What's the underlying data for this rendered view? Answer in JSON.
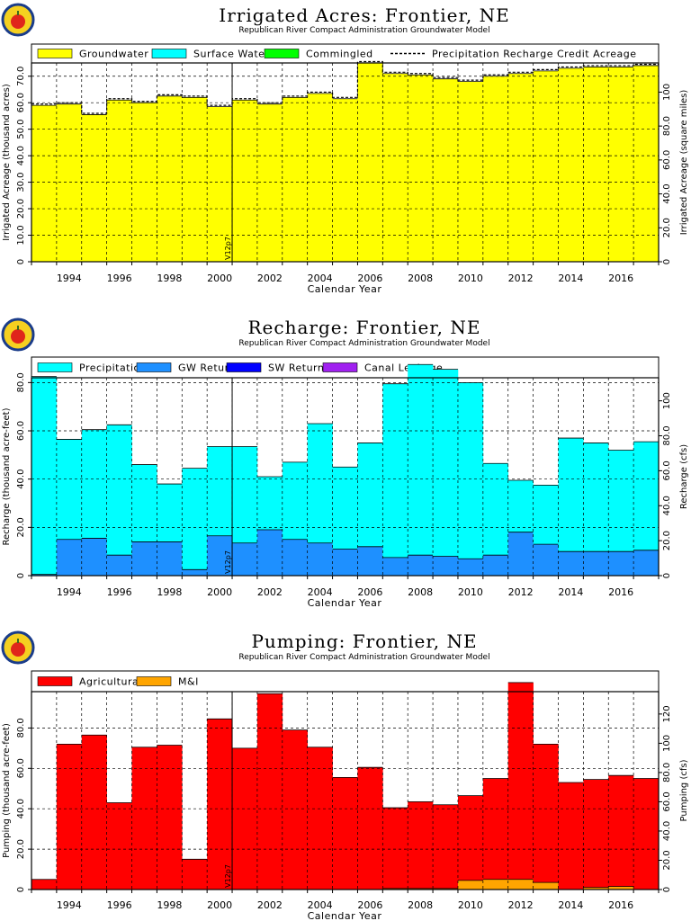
{
  "colors": {
    "groundwater": "#ffff00",
    "surface_water": "#00ffff",
    "commingled": "#00ff00",
    "precipitation": "#00ffff",
    "gw_returns": "#1e90ff",
    "sw_returns": "#0000ff",
    "canal_leakage": "#a020f0",
    "agricultural": "#ff0000",
    "mi": "#ffa500",
    "logo_ring": "#1a3c8a",
    "logo_apple": "#e0251b"
  },
  "common": {
    "subtitle": "Republican River Compact Administration Groundwater Model",
    "x_label": "Calendar Year",
    "version_marker": "V12p7",
    "x_tick_labels": [
      "1994",
      "1996",
      "1998",
      "2000",
      "2002",
      "2004",
      "2006",
      "2008",
      "2010",
      "2012",
      "2014",
      "2016"
    ]
  },
  "chart_data": [
    {
      "type": "area",
      "title": "Irrigated Acres: Frontier, NE",
      "ylabel": "Irrigated Acreage (thousand acres)",
      "ylabel_right": "Irrigated Acreage (square miles)",
      "ylim": [
        0,
        75
      ],
      "ylim_right": [
        0,
        117.2
      ],
      "y_ticks": [
        "0",
        "10.0",
        "20.0",
        "30.0",
        "40.0",
        "50.0",
        "60.0",
        "70.0"
      ],
      "y_ticks_right": [
        "0",
        "20.0",
        "40.0",
        "60.0",
        "80.0",
        "100"
      ],
      "years": [
        1993,
        1994,
        1995,
        1996,
        1997,
        1998,
        1999,
        2000,
        2001,
        2002,
        2003,
        2004,
        2005,
        2006,
        2007,
        2008,
        2009,
        2010,
        2011,
        2012,
        2013,
        2014,
        2015,
        2016,
        2017
      ],
      "legend": [
        "Groundwater",
        "Surface Water",
        "Commingled",
        "Precipitation Recharge Credit Acreage"
      ],
      "series": [
        {
          "name": "Groundwater",
          "values": [
            59.0,
            59.5,
            55.5,
            61.0,
            60.0,
            62.5,
            62.0,
            58.5,
            61.0,
            59.5,
            62.0,
            63.5,
            61.5,
            75.0,
            71.0,
            70.5,
            69.0,
            68.0,
            70.0,
            71.0,
            72.0,
            73.0,
            73.5,
            73.5,
            74.0
          ]
        },
        {
          "name": "Surface Water",
          "values": [
            0,
            0,
            0,
            0,
            0,
            0,
            0,
            0,
            0,
            0,
            0,
            0,
            0,
            0,
            0,
            0,
            0,
            0,
            0,
            0,
            0,
            0,
            0,
            0,
            0
          ]
        },
        {
          "name": "Commingled",
          "values": [
            0,
            0,
            0,
            0,
            0,
            0,
            0,
            0,
            0,
            0,
            0,
            0,
            0,
            0,
            0,
            0,
            0,
            0,
            0,
            0,
            0,
            0,
            0,
            0,
            0
          ]
        },
        {
          "name": "Precipitation Recharge Credit Acreage",
          "values": [
            59.5,
            60.0,
            56.0,
            61.5,
            60.5,
            63.0,
            62.5,
            59.0,
            61.5,
            60.0,
            62.5,
            64.0,
            62.0,
            75.5,
            71.5,
            71.0,
            69.5,
            68.5,
            70.5,
            71.5,
            72.5,
            73.5,
            74.0,
            74.0,
            74.5
          ]
        }
      ],
      "grid": true
    },
    {
      "type": "area",
      "title": "Recharge: Frontier, NE",
      "ylabel": "Recharge (thousand acre-feet)",
      "ylabel_right": "Recharge (cfs)",
      "ylim": [
        0,
        82
      ],
      "ylim_right": [
        0,
        113.2
      ],
      "y_ticks": [
        "0",
        "20.0",
        "40.0",
        "60.0",
        "80.0"
      ],
      "y_ticks_right": [
        "0",
        "20.0",
        "40.0",
        "60.0",
        "80.0",
        "100"
      ],
      "years": [
        1993,
        1994,
        1995,
        1996,
        1997,
        1998,
        1999,
        2000,
        2001,
        2002,
        2003,
        2004,
        2005,
        2006,
        2007,
        2008,
        2009,
        2010,
        2011,
        2012,
        2013,
        2014,
        2015,
        2016,
        2017
      ],
      "legend": [
        "Precipitation",
        "GW Returns",
        "SW Returns",
        "Canal Leakage"
      ],
      "series": [
        {
          "name": "GW Returns",
          "values": [
            0.5,
            15.0,
            15.5,
            8.5,
            14.0,
            14.0,
            2.5,
            16.5,
            13.5,
            19.0,
            15.0,
            13.5,
            11.0,
            12.0,
            7.5,
            8.5,
            8.0,
            7.0,
            8.5,
            18.0,
            13.0,
            10.0,
            10.0,
            10.0,
            10.5
          ]
        },
        {
          "name": "Precipitation",
          "values": [
            82.0,
            41.5,
            45.0,
            54.0,
            32.0,
            24.0,
            42.0,
            37.0,
            40.0,
            22.0,
            32.0,
            49.5,
            34.0,
            43.0,
            72.0,
            79.0,
            77.5,
            73.0,
            38.0,
            21.5,
            24.5,
            47.0,
            45.0,
            42.0,
            45.0
          ]
        },
        {
          "name": "SW Returns",
          "values": [
            0,
            0,
            0,
            0,
            0,
            0,
            0,
            0,
            0,
            0,
            0,
            0,
            0,
            0,
            0,
            0,
            0,
            0,
            0,
            0,
            0,
            0,
            0,
            0,
            0
          ]
        },
        {
          "name": "Canal Leakage",
          "values": [
            0,
            0,
            0,
            0,
            0,
            0,
            0,
            0,
            0,
            0,
            0,
            0,
            0,
            0,
            0,
            0,
            0,
            0,
            0,
            0,
            0,
            0,
            0,
            0,
            0
          ]
        }
      ],
      "grid": true
    },
    {
      "type": "area",
      "title": "Pumping: Frontier, NE",
      "ylabel": "Pumping (thousand acre-feet)",
      "ylabel_right": "Pumping (cfs)",
      "ylim": [
        0,
        98
      ],
      "ylim_right": [
        0,
        135.3
      ],
      "y_ticks": [
        "0",
        "20.0",
        "40.0",
        "60.0",
        "80.0"
      ],
      "y_ticks_right": [
        "0",
        "20.0",
        "40.0",
        "60.0",
        "80.0",
        "100",
        "120"
      ],
      "years": [
        1993,
        1994,
        1995,
        1996,
        1997,
        1998,
        1999,
        2000,
        2001,
        2002,
        2003,
        2004,
        2005,
        2006,
        2007,
        2008,
        2009,
        2010,
        2011,
        2012,
        2013,
        2014,
        2015,
        2016,
        2017
      ],
      "legend": [
        "Agricultural",
        "M&I"
      ],
      "series": [
        {
          "name": "Agricultural",
          "values": [
            5.0,
            72.0,
            76.5,
            43.0,
            70.5,
            71.5,
            15.0,
            84.5,
            70.0,
            97.0,
            79.0,
            70.5,
            55.5,
            60.5,
            40.0,
            43.0,
            41.5,
            42.0,
            50.0,
            97.5,
            68.5,
            53.0,
            53.5,
            55.0,
            55.0
          ]
        },
        {
          "name": "M&I",
          "values": [
            0,
            0,
            0,
            0,
            0,
            0,
            0,
            0,
            0,
            0,
            0,
            0,
            0,
            0,
            0.5,
            0.5,
            0.5,
            4.5,
            5.0,
            5.0,
            3.5,
            0,
            1.0,
            1.5,
            0
          ]
        }
      ],
      "grid": true
    }
  ]
}
